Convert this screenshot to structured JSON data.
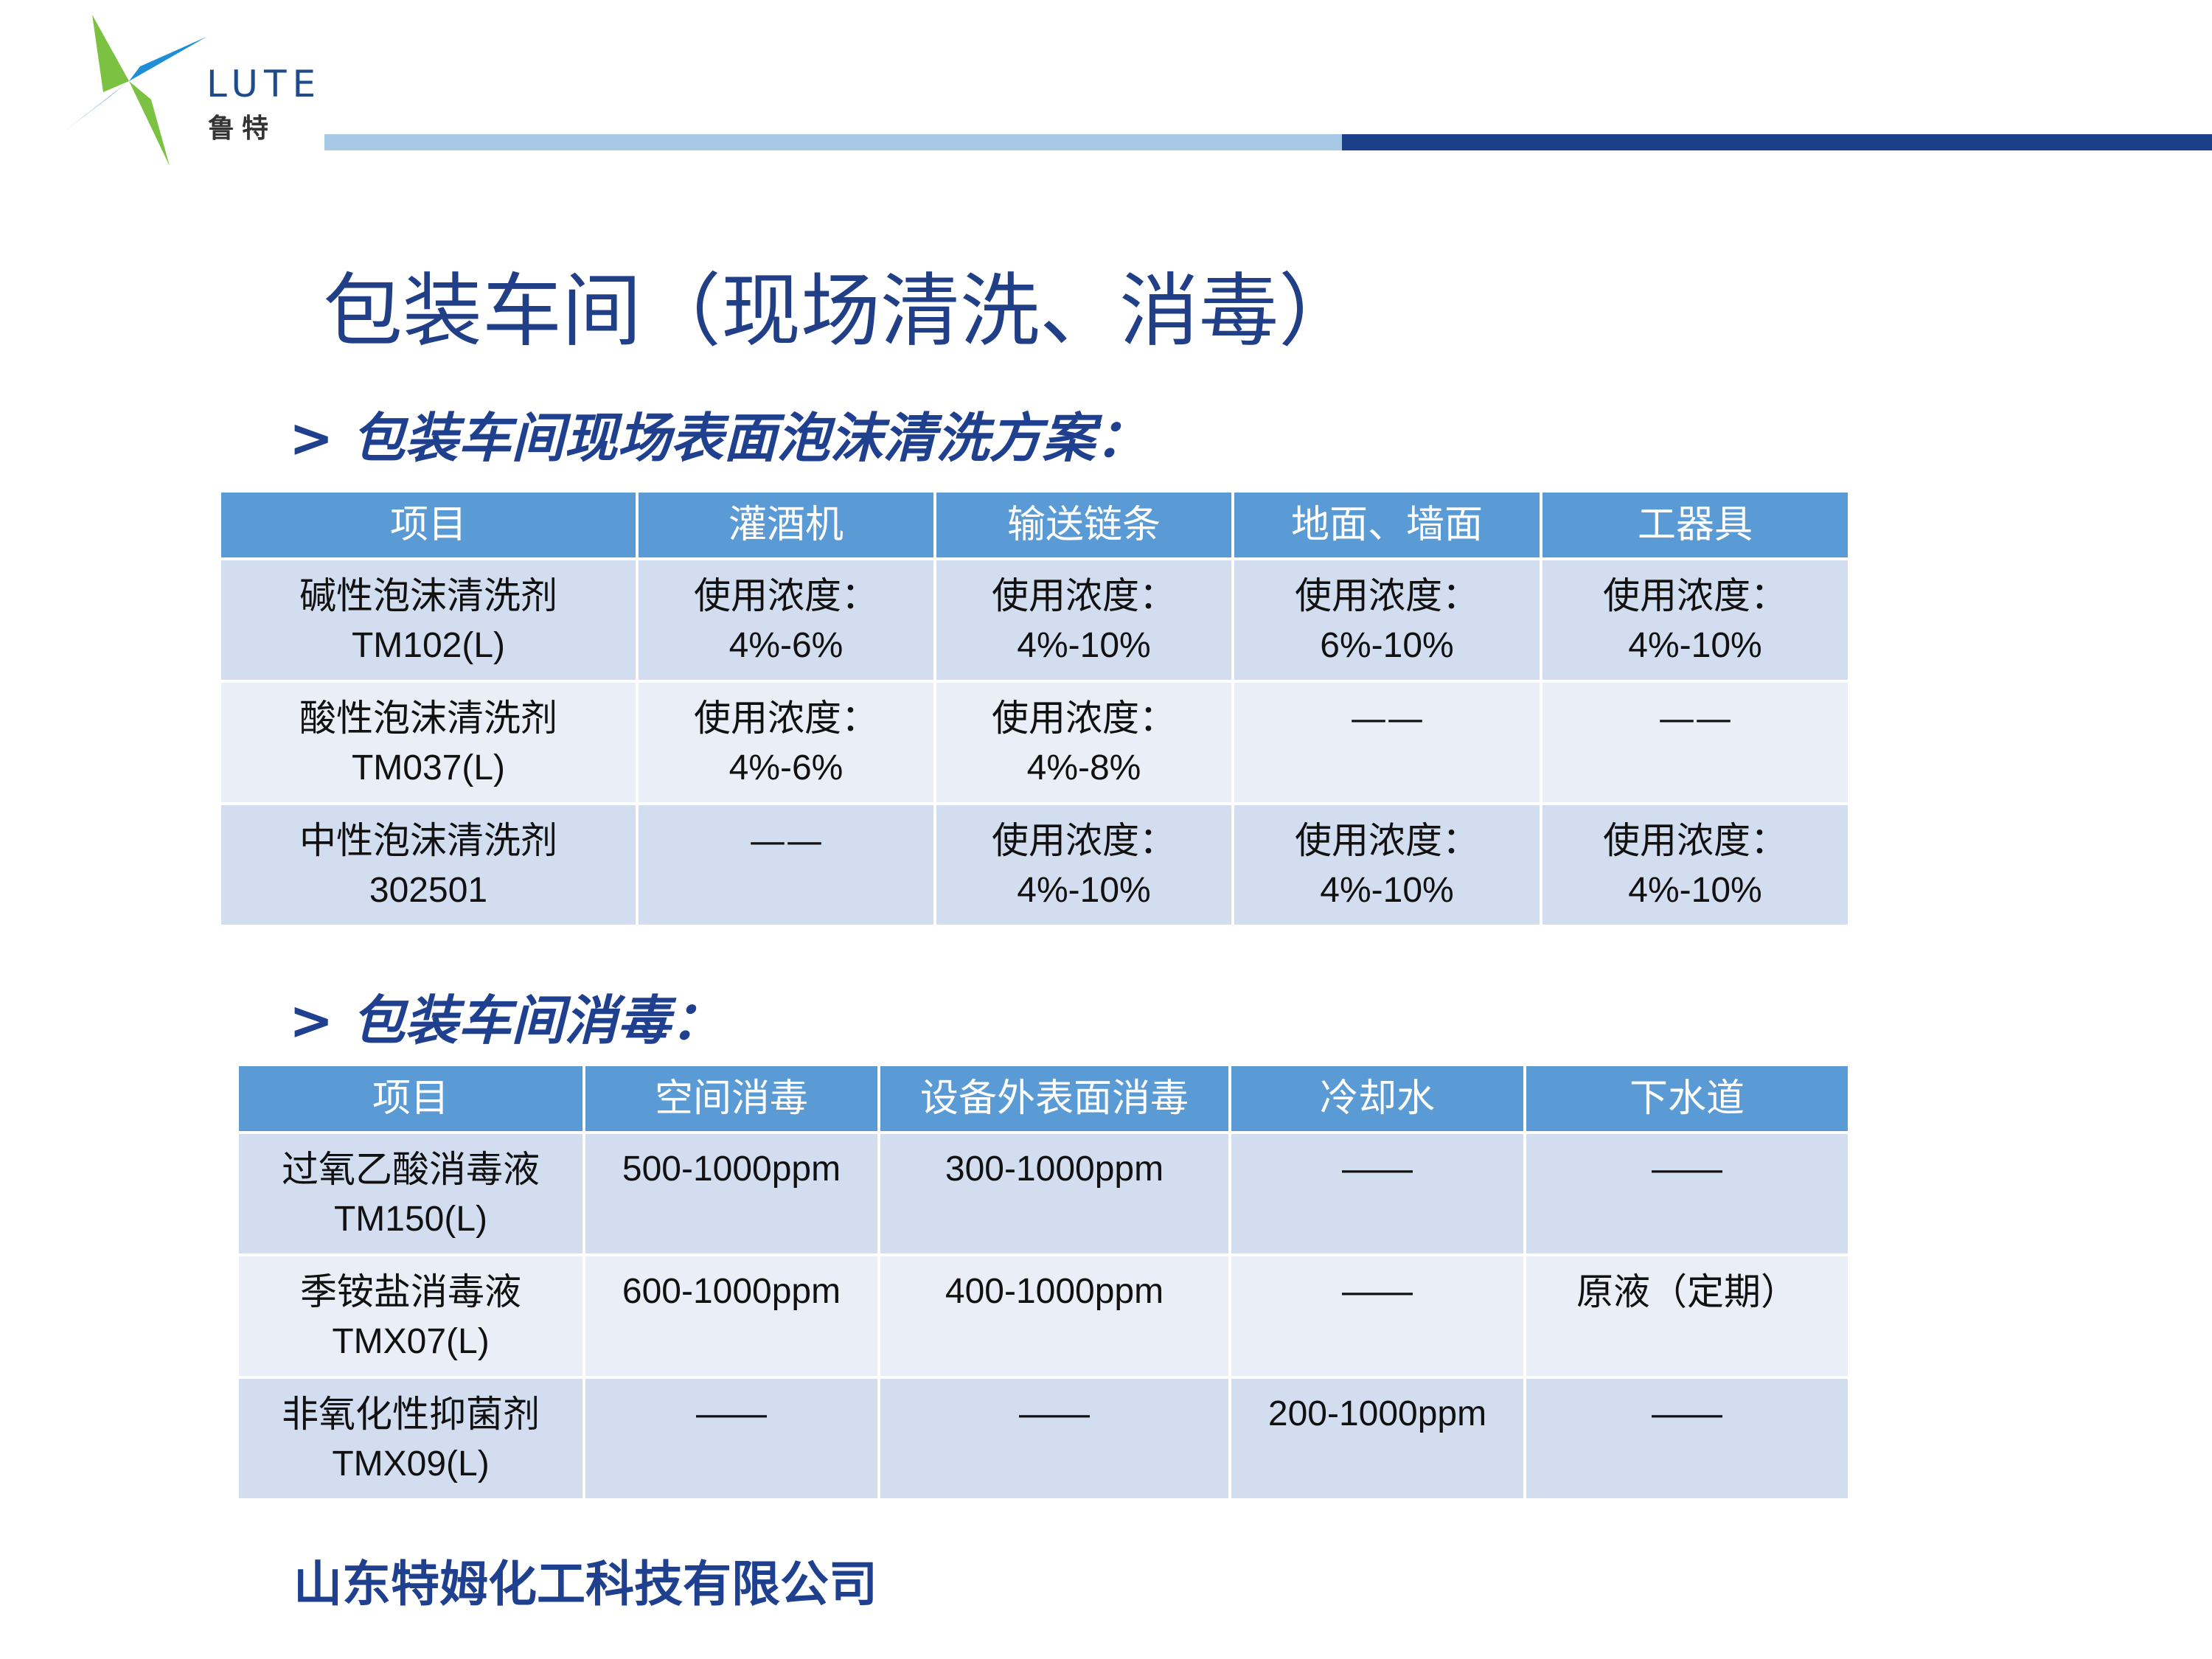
{
  "logo": {
    "word": "LUTE",
    "cn": "鲁特"
  },
  "page_title": "包装车间（现场清洗、消毒）",
  "section1": {
    "title": "> 包装车间现场表面泡沫清洗方案：",
    "headers": [
      "项目",
      "灌酒机",
      "输送链条",
      "地面、墙面",
      "工器具"
    ],
    "rows": [
      {
        "name": "碱性泡沫清洗剂",
        "code": "TM102(L)",
        "cells": [
          [
            "使用浓度：",
            "4%-6%"
          ],
          [
            "使用浓度：",
            "4%-10%"
          ],
          [
            "使用浓度：",
            "6%-10%"
          ],
          [
            "使用浓度：",
            "4%-10%"
          ]
        ]
      },
      {
        "name": "酸性泡沫清洗剂",
        "code": "TM037(L)",
        "cells": [
          [
            "使用浓度：",
            "4%-6%"
          ],
          [
            "使用浓度：",
            "4%-8%"
          ],
          [
            "——",
            ""
          ],
          [
            "——",
            ""
          ]
        ]
      },
      {
        "name": "中性泡沫清洗剂",
        "code": "302501",
        "cells": [
          [
            "——",
            ""
          ],
          [
            "使用浓度：",
            "4%-10%"
          ],
          [
            "使用浓度：",
            "4%-10%"
          ],
          [
            "使用浓度：",
            "4%-10%"
          ]
        ]
      }
    ]
  },
  "section2": {
    "title": "> 包装车间消毒：",
    "headers": [
      "项目",
      "空间消毒",
      "设备外表面消毒",
      "冷却水",
      "下水道"
    ],
    "rows": [
      {
        "name": "过氧乙酸消毒液",
        "code": "TM150(L)",
        "cells": [
          "500-1000ppm",
          "300-1000ppm",
          "——",
          "——"
        ]
      },
      {
        "name": "季铵盐消毒液",
        "code": "TMX07(L)",
        "cells": [
          "600-1000ppm",
          "400-1000ppm",
          "——",
          "原液（定期）"
        ]
      },
      {
        "name": "非氧化性抑菌剂",
        "code": "TMX09(L)",
        "cells": [
          "——",
          "——",
          "200-1000ppm",
          "——"
        ]
      }
    ]
  },
  "footer": "山东特姆化工科技有限公司",
  "colors": {
    "header_blue": "#5b9bd5",
    "row_dark": "#d2deef",
    "row_light": "#eaeff7",
    "title_navy": "#213f87"
  }
}
